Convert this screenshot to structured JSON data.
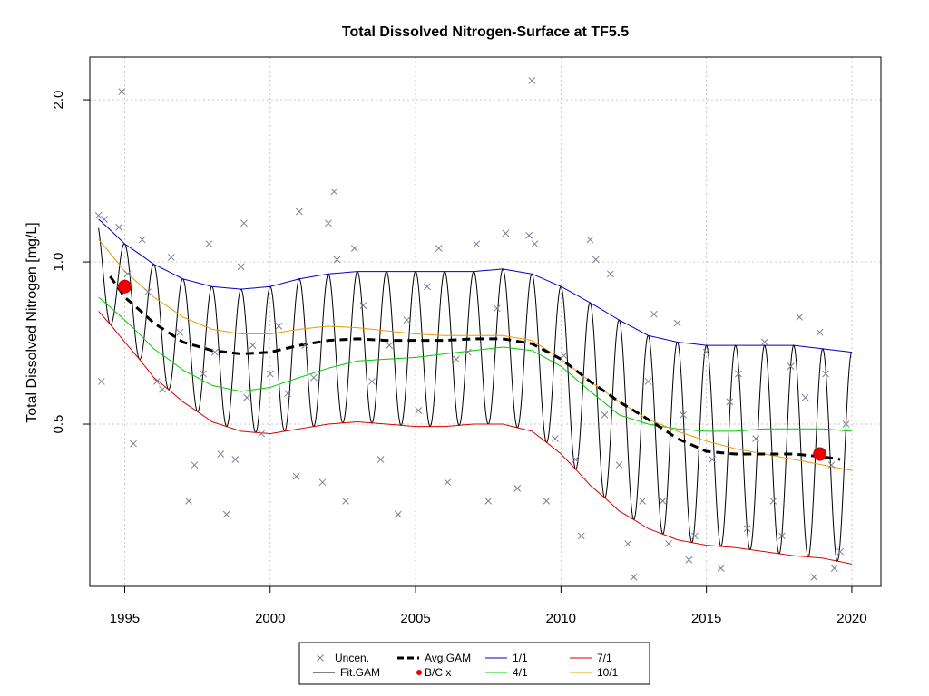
{
  "chart_data": {
    "type": "line",
    "title": "Total Dissolved Nitrogen-Surface at TF5.5",
    "xlabel": "",
    "ylabel": "Total Dissolved Nitrogen [mg/L]",
    "y_scale": "log",
    "xlim": [
      1993.8,
      2021.0
    ],
    "ylim": [
      0.25,
      2.4
    ],
    "x_ticks": [
      1995,
      2000,
      2005,
      2010,
      2015,
      2020
    ],
    "x_tick_labels": [
      "1995",
      "2000",
      "2005",
      "2010",
      "2015",
      "2020"
    ],
    "y_ticks": [
      0.5,
      1.0,
      2.0
    ],
    "y_tick_labels": [
      "0.5",
      "1.0",
      "2.0"
    ],
    "grid": true,
    "legend_position": "bottom",
    "legend": [
      {
        "label": "Uncen.",
        "kind": "points-x",
        "color": "#7a7f99"
      },
      {
        "label": "Avg.GAM",
        "kind": "dashed",
        "color": "#000000"
      },
      {
        "label": "1/1",
        "kind": "line",
        "color": "#0000cc"
      },
      {
        "label": "7/1",
        "kind": "line",
        "color": "#dd0000"
      },
      {
        "label": "Fit.GAM",
        "kind": "line",
        "color": "#000000"
      },
      {
        "label": "B/C x",
        "kind": "dot",
        "color": "#ee0000"
      },
      {
        "label": "4/1",
        "kind": "line",
        "color": "#00cc00"
      },
      {
        "label": "10/1",
        "kind": "line",
        "color": "#ee9900"
      }
    ],
    "colors": {
      "uncensored": "#7a7f99",
      "fit_gam": "#000000",
      "avg_gam": "#000000",
      "jan1": "#0000cc",
      "apr1": "#00cc00",
      "jul1": "#dd0000",
      "oct1": "#ee9900",
      "bc": "#ee0000"
    },
    "series": [
      {
        "name": "1/1",
        "x": [
          1994.1,
          1995,
          1996,
          1997,
          1998,
          1999,
          2000,
          2001,
          2002,
          2003,
          2004,
          2005,
          2006,
          2007,
          2008,
          2009,
          2010,
          2011,
          2012,
          2013,
          2014,
          2015,
          2016,
          2017,
          2018,
          2019,
          2020
        ],
        "values": [
          1.2,
          1.08,
          0.99,
          0.93,
          0.9,
          0.89,
          0.9,
          0.93,
          0.95,
          0.96,
          0.96,
          0.96,
          0.96,
          0.96,
          0.97,
          0.95,
          0.9,
          0.84,
          0.78,
          0.73,
          0.71,
          0.7,
          0.7,
          0.7,
          0.7,
          0.69,
          0.68
        ]
      },
      {
        "name": "4/1",
        "x": [
          1994.1,
          1995,
          1996,
          1997,
          1998,
          1999,
          2000,
          2001,
          2002,
          2003,
          2004,
          2005,
          2006,
          2007,
          2008,
          2009,
          2010,
          2011,
          2012,
          2013,
          2014,
          2015,
          2016,
          2017,
          2018,
          2019,
          2020
        ],
        "values": [
          0.86,
          0.78,
          0.69,
          0.63,
          0.59,
          0.575,
          0.585,
          0.61,
          0.635,
          0.655,
          0.66,
          0.665,
          0.675,
          0.685,
          0.695,
          0.685,
          0.64,
          0.575,
          0.52,
          0.5,
          0.49,
          0.485,
          0.485,
          0.49,
          0.49,
          0.49,
          0.485
        ]
      },
      {
        "name": "7/1",
        "x": [
          1994.1,
          1995,
          1996,
          1997,
          1998,
          1999,
          2000,
          2001,
          2002,
          2003,
          2004,
          2005,
          2006,
          2007,
          2008,
          2009,
          2010,
          2011,
          2012,
          2013,
          2014,
          2015,
          2016,
          2017,
          2018,
          2019,
          2020
        ],
        "values": [
          0.81,
          0.71,
          0.61,
          0.55,
          0.505,
          0.485,
          0.48,
          0.49,
          0.5,
          0.505,
          0.5,
          0.495,
          0.495,
          0.5,
          0.5,
          0.485,
          0.44,
          0.385,
          0.345,
          0.32,
          0.305,
          0.298,
          0.295,
          0.29,
          0.285,
          0.282,
          0.275
        ]
      },
      {
        "name": "10/1",
        "x": [
          1994.1,
          1995,
          1996,
          1997,
          1998,
          1999,
          2000,
          2001,
          2002,
          2003,
          2004,
          2005,
          2006,
          2007,
          2008,
          2009,
          2010,
          2011,
          2012,
          2013,
          2014,
          2015,
          2016,
          2017,
          2018,
          2019,
          2020
        ],
        "values": [
          1.1,
          0.96,
          0.86,
          0.79,
          0.75,
          0.735,
          0.735,
          0.75,
          0.76,
          0.755,
          0.745,
          0.735,
          0.73,
          0.73,
          0.73,
          0.715,
          0.66,
          0.6,
          0.55,
          0.51,
          0.485,
          0.465,
          0.45,
          0.44,
          0.43,
          0.42,
          0.41
        ]
      },
      {
        "name": "Avg.GAM",
        "x": [
          1994.5,
          1995,
          1996,
          1997,
          1998,
          1999,
          2000,
          2001,
          2002,
          2003,
          2004,
          2005,
          2006,
          2007,
          2008,
          2009,
          2010,
          2011,
          2012,
          2013,
          2014,
          2015,
          2016,
          2017,
          2018,
          2019,
          2019.6
        ],
        "values": [
          0.94,
          0.86,
          0.77,
          0.71,
          0.685,
          0.675,
          0.68,
          0.7,
          0.715,
          0.72,
          0.715,
          0.715,
          0.715,
          0.72,
          0.72,
          0.705,
          0.66,
          0.6,
          0.55,
          0.51,
          0.47,
          0.445,
          0.44,
          0.44,
          0.44,
          0.435,
          0.43
        ]
      }
    ],
    "bc_points": [
      {
        "x": 1995.0,
        "y": 0.9
      },
      {
        "x": 2018.9,
        "y": 0.44
      }
    ],
    "uncensored_points": [
      {
        "x": 1994.1,
        "y": 1.22
      },
      {
        "x": 1994.3,
        "y": 1.2
      },
      {
        "x": 1994.2,
        "y": 0.6
      },
      {
        "x": 1994.8,
        "y": 1.16
      },
      {
        "x": 1994.9,
        "y": 2.07
      },
      {
        "x": 1995.1,
        "y": 0.95
      },
      {
        "x": 1995.3,
        "y": 0.46
      },
      {
        "x": 1995.6,
        "y": 1.1
      },
      {
        "x": 1995.8,
        "y": 0.88
      },
      {
        "x": 1996.1,
        "y": 0.6
      },
      {
        "x": 1996.3,
        "y": 0.58
      },
      {
        "x": 1996.6,
        "y": 1.02
      },
      {
        "x": 1996.9,
        "y": 0.74
      },
      {
        "x": 1997.2,
        "y": 0.36
      },
      {
        "x": 1997.4,
        "y": 0.42
      },
      {
        "x": 1997.7,
        "y": 0.62
      },
      {
        "x": 1997.9,
        "y": 1.08
      },
      {
        "x": 1998.1,
        "y": 0.68
      },
      {
        "x": 1998.3,
        "y": 0.44
      },
      {
        "x": 1998.5,
        "y": 0.34
      },
      {
        "x": 1998.8,
        "y": 0.43
      },
      {
        "x": 1999.0,
        "y": 0.98
      },
      {
        "x": 1999.2,
        "y": 0.56
      },
      {
        "x": 1999.4,
        "y": 0.7
      },
      {
        "x": 1999.1,
        "y": 1.18
      },
      {
        "x": 1999.7,
        "y": 0.48
      },
      {
        "x": 2000.0,
        "y": 0.62
      },
      {
        "x": 2000.3,
        "y": 0.76
      },
      {
        "x": 2000.6,
        "y": 0.57
      },
      {
        "x": 2000.9,
        "y": 0.4
      },
      {
        "x": 2001.0,
        "y": 1.24
      },
      {
        "x": 2001.2,
        "y": 0.7
      },
      {
        "x": 2001.5,
        "y": 0.61
      },
      {
        "x": 2001.8,
        "y": 0.39
      },
      {
        "x": 2002.0,
        "y": 1.18
      },
      {
        "x": 2002.2,
        "y": 1.35
      },
      {
        "x": 2002.3,
        "y": 1.01
      },
      {
        "x": 2002.6,
        "y": 0.36
      },
      {
        "x": 2002.9,
        "y": 1.06
      },
      {
        "x": 2003.2,
        "y": 0.83
      },
      {
        "x": 2003.5,
        "y": 0.6
      },
      {
        "x": 2003.8,
        "y": 0.43
      },
      {
        "x": 2004.1,
        "y": 0.7
      },
      {
        "x": 2004.4,
        "y": 0.34
      },
      {
        "x": 2004.7,
        "y": 0.78
      },
      {
        "x": 2005.1,
        "y": 0.53
      },
      {
        "x": 2005.4,
        "y": 0.9
      },
      {
        "x": 2005.8,
        "y": 1.06
      },
      {
        "x": 2006.1,
        "y": 0.39
      },
      {
        "x": 2006.4,
        "y": 0.66
      },
      {
        "x": 2006.8,
        "y": 0.68
      },
      {
        "x": 2007.1,
        "y": 1.08
      },
      {
        "x": 2007.5,
        "y": 0.36
      },
      {
        "x": 2007.8,
        "y": 0.82
      },
      {
        "x": 2008.1,
        "y": 1.13
      },
      {
        "x": 2008.5,
        "y": 0.38
      },
      {
        "x": 2008.9,
        "y": 1.12
      },
      {
        "x": 2009.0,
        "y": 2.17
      },
      {
        "x": 2009.1,
        "y": 1.08
      },
      {
        "x": 2009.5,
        "y": 0.36
      },
      {
        "x": 2009.8,
        "y": 0.47
      },
      {
        "x": 2010.1,
        "y": 0.67
      },
      {
        "x": 2010.5,
        "y": 0.43
      },
      {
        "x": 2010.7,
        "y": 0.31
      },
      {
        "x": 2011.0,
        "y": 1.1
      },
      {
        "x": 2011.2,
        "y": 1.01
      },
      {
        "x": 2011.5,
        "y": 0.52
      },
      {
        "x": 2011.7,
        "y": 0.95
      },
      {
        "x": 2012.0,
        "y": 0.42
      },
      {
        "x": 2012.3,
        "y": 0.3
      },
      {
        "x": 2012.5,
        "y": 0.26
      },
      {
        "x": 2012.8,
        "y": 0.36
      },
      {
        "x": 2013.0,
        "y": 0.6
      },
      {
        "x": 2013.2,
        "y": 0.8
      },
      {
        "x": 2013.5,
        "y": 0.36
      },
      {
        "x": 2013.7,
        "y": 0.3
      },
      {
        "x": 2014.0,
        "y": 0.77
      },
      {
        "x": 2014.2,
        "y": 0.52
      },
      {
        "x": 2014.4,
        "y": 0.28
      },
      {
        "x": 2014.6,
        "y": 0.31
      },
      {
        "x": 2015.0,
        "y": 0.68
      },
      {
        "x": 2015.2,
        "y": 0.43
      },
      {
        "x": 2015.5,
        "y": 0.27
      },
      {
        "x": 2015.8,
        "y": 0.55
      },
      {
        "x": 2016.1,
        "y": 0.62
      },
      {
        "x": 2016.4,
        "y": 0.32
      },
      {
        "x": 2016.7,
        "y": 0.47
      },
      {
        "x": 2017.0,
        "y": 0.71
      },
      {
        "x": 2017.3,
        "y": 0.36
      },
      {
        "x": 2017.6,
        "y": 0.31
      },
      {
        "x": 2017.9,
        "y": 0.64
      },
      {
        "x": 2018.2,
        "y": 0.79
      },
      {
        "x": 2018.4,
        "y": 0.56
      },
      {
        "x": 2018.7,
        "y": 0.26
      },
      {
        "x": 2018.9,
        "y": 0.74
      },
      {
        "x": 2019.1,
        "y": 0.62
      },
      {
        "x": 2019.4,
        "y": 0.27
      },
      {
        "x": 2019.6,
        "y": 0.29
      },
      {
        "x": 2019.8,
        "y": 0.5
      },
      {
        "x": 2019.3,
        "y": 0.42
      }
    ],
    "fit_gam": {
      "name": "Fit.GAM",
      "x_start": 1994.1,
      "x_end": 2020.0
    }
  }
}
